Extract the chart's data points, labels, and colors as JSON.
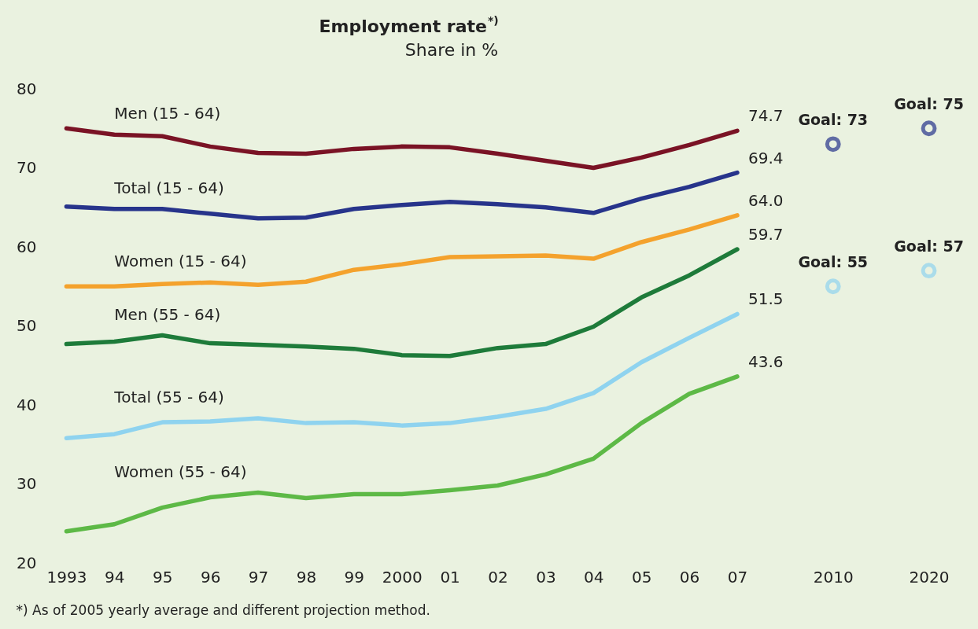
{
  "chart_data": {
    "type": "line",
    "title": "Employment rate$^{*)}$",
    "subtitle": "Share in %",
    "categories": [
      "1993",
      "94",
      "95",
      "96",
      "97",
      "98",
      "99",
      "2000",
      "01",
      "02",
      "03",
      "04",
      "05",
      "06",
      "07",
      null,
      "2010",
      null,
      "2020"
    ],
    "ylim": [
      20,
      80
    ],
    "yticks": [
      20,
      30,
      40,
      50,
      60,
      70,
      80
    ],
    "grid": false,
    "line_style": "solid",
    "series": [
      {
        "name": "Men (15 - 64)",
        "color": "#7a1325",
        "values": [
          75.0,
          74.2,
          74.0,
          72.7,
          71.9,
          71.8,
          72.4,
          72.7,
          72.6,
          71.8,
          70.9,
          70.0,
          71.3,
          72.9,
          74.7,
          null,
          null,
          null,
          null
        ],
        "value_labels": [
          null,
          null,
          null,
          null,
          null,
          null,
          null,
          null,
          null,
          null,
          null,
          null,
          null,
          null,
          "74.7",
          null,
          null,
          null,
          null
        ]
      },
      {
        "name": "Total (15 - 64)",
        "color": "#27348b",
        "values": [
          65.1,
          64.8,
          64.8,
          64.2,
          63.6,
          63.7,
          64.8,
          65.3,
          65.7,
          65.4,
          65.0,
          64.3,
          66.1,
          67.6,
          69.4,
          null,
          null,
          null,
          null
        ],
        "value_labels": [
          null,
          null,
          null,
          null,
          null,
          null,
          null,
          null,
          null,
          null,
          null,
          null,
          null,
          null,
          "69.4",
          null,
          null,
          null,
          null
        ]
      },
      {
        "name": "Women (15 - 64)",
        "color": "#f4a22d",
        "values": [
          55.0,
          55.0,
          55.3,
          55.5,
          55.2,
          55.6,
          57.1,
          57.8,
          58.7,
          58.8,
          58.9,
          58.5,
          60.6,
          62.2,
          64.0,
          null,
          null,
          null,
          null
        ],
        "value_labels": [
          null,
          null,
          null,
          null,
          null,
          null,
          null,
          null,
          null,
          null,
          null,
          null,
          null,
          null,
          "64.0",
          null,
          null,
          null,
          null
        ]
      },
      {
        "name": "Men (55 - 64)",
        "color": "#1e7b3a",
        "values": [
          47.7,
          48.0,
          48.8,
          47.8,
          47.6,
          47.4,
          47.1,
          46.3,
          46.2,
          47.2,
          47.7,
          49.9,
          53.6,
          56.4,
          59.7,
          null,
          null,
          null,
          null
        ],
        "value_labels": [
          null,
          null,
          null,
          null,
          null,
          null,
          null,
          null,
          null,
          null,
          null,
          null,
          null,
          null,
          "59.7",
          null,
          null,
          null,
          null
        ]
      },
      {
        "name": "Total (55 - 64)",
        "color": "#8fd3ef",
        "values": [
          35.8,
          36.3,
          37.8,
          37.9,
          38.3,
          37.7,
          37.8,
          37.4,
          37.7,
          38.5,
          39.5,
          41.5,
          45.4,
          48.5,
          51.5,
          null,
          null,
          null,
          null
        ],
        "value_labels": [
          null,
          null,
          null,
          null,
          null,
          null,
          null,
          null,
          null,
          null,
          null,
          null,
          null,
          null,
          "51.5",
          null,
          null,
          null,
          null
        ]
      },
      {
        "name": "Women (55 - 64)",
        "color": "#5db946",
        "values": [
          24.0,
          24.9,
          27.0,
          28.3,
          28.9,
          28.2,
          28.7,
          28.7,
          29.2,
          29.8,
          31.2,
          33.2,
          37.7,
          41.4,
          43.6,
          null,
          null,
          null,
          null
        ],
        "value_labels": [
          null,
          null,
          null,
          null,
          null,
          null,
          null,
          null,
          null,
          null,
          null,
          null,
          null,
          null,
          "43.6",
          null,
          null,
          null,
          null
        ]
      },
      {
        "type": "scatter",
        "marker": "circle",
        "color": "#27348b",
        "values": [
          null,
          null,
          null,
          null,
          null,
          null,
          null,
          null,
          null,
          null,
          null,
          null,
          null,
          null,
          null,
          null,
          73,
          null,
          75
        ]
      },
      {
        "type": "scatter",
        "marker": "circle",
        "color": "#8fd3ef",
        "values": [
          null,
          null,
          null,
          null,
          null,
          null,
          null,
          null,
          null,
          null,
          null,
          null,
          null,
          null,
          null,
          null,
          55,
          null,
          57
        ]
      }
    ],
    "annotations": [
      {
        "text": "Goal: 73",
        "x": "2010",
        "y": 73
      },
      {
        "text": "Goal: 75",
        "x": "2020",
        "y": 75
      },
      {
        "text": "Goal: 55",
        "x": "2010",
        "y": 55
      },
      {
        "text": "Goal: 57",
        "x": "2020",
        "y": 57
      },
      "*) As of 2005 yearly average and different projection method."
    ]
  }
}
